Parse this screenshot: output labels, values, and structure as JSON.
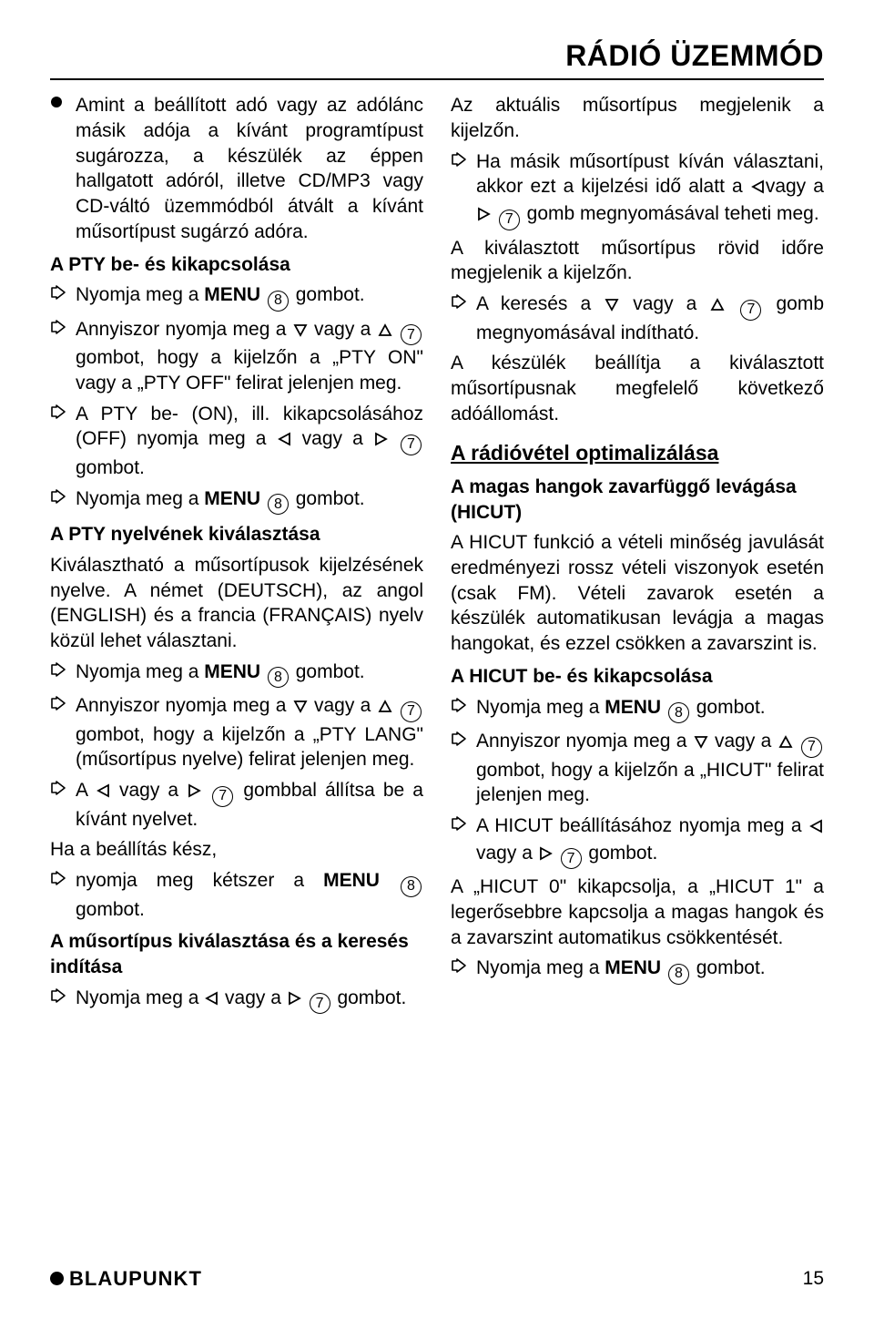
{
  "page_title": "RÁDIÓ ÜZEMMÓD",
  "left": {
    "bullet1": "Amint a beállított adó vagy az adólánc másik adója a kívánt programtípust sugározza, a készülék az éppen hallgatott adóról, illetve CD/MP3 vagy CD-váltó üzemmódból átvált a kívánt műsortípust sugárzó adóra.",
    "h_pty_onoff": "A PTY be- és kikapcsolása",
    "a1_pre": "Nyomja meg a ",
    "a1_menu": "MENU",
    "a1_num": "8",
    "a1_post": " gombot.",
    "a2_seg1": "Annyiszor nyomja meg a ",
    "a2_seg2": " vagy a ",
    "a2_num": "7",
    "a2_seg3": " gombot, hogy a kijelzőn a „PTY ON\" vagy a „PTY OFF\" felirat jelenjen meg.",
    "a3_seg1": "A PTY be- (ON), ill. kikapcsolásához (OFF) nyomja meg a ",
    "a3_seg2": " vagy a ",
    "a3_num": "7",
    "a3_seg3": " gombot.",
    "a4_pre": "Nyomja meg a ",
    "a4_menu": "MENU",
    "a4_num": "8",
    "a4_post": " gombot.",
    "h_pty_lang": "A PTY nyelvének kiválasztása",
    "p_lang": "Kiválasztható a műsortípusok kijelzésének nyelve. A német (DEUTSCH), az angol (ENGLISH) és a francia (FRANÇAIS) nyelv közül lehet választani.",
    "a5_pre": "Nyomja meg a ",
    "a5_menu": "MENU",
    "a5_num": "8",
    "a5_post": " gombot.",
    "a6_seg1": "Annyiszor nyomja meg a ",
    "a6_seg2": " vagy a ",
    "a6_num": "7",
    "a6_seg3": " gombot, hogy a kijelzőn a „PTY LANG\" (műsortípus nyelve) felirat jelenjen meg.",
    "a7_seg1": "A ",
    "a7_seg2": " vagy a ",
    "a7_num": "7",
    "a7_seg3": " gombbal állítsa be a kívánt nyelvet.",
    "p_ready": "Ha a beállítás kész,",
    "a8_pre": "nyomja meg kétszer a ",
    "a8_menu": "MENU",
    "a8_num": "8",
    "a8_post": " gombot.",
    "h_search": "A műsortípus kiválasztása és a keresés indítása",
    "a9_seg1": "Nyomja meg a ",
    "a9_seg2": " vagy a ",
    "a9_num": "7",
    "a9_seg3": " gombot."
  },
  "right": {
    "p_current": "Az aktuális műsortípus megjelenik a kijelzőn.",
    "a1_seg1": "Ha másik műsortípust kíván választani, akkor ezt a kijelzési idő alatt a ",
    "a1_seg2": "vagy a ",
    "a1_num": "7",
    "a1_seg3": " gomb megnyomásával teheti meg.",
    "p_selected": "A kiválasztott műsortípus rövid időre megjelenik a kijelzőn.",
    "a2_seg1": "A keresés a ",
    "a2_seg2": " vagy a ",
    "a2_num": "7",
    "a2_seg3": " gomb megnyomásával indítható.",
    "p_station": "A készülék beállítja a kiválasztott műsortípusnak megfelelő következő adóállomást.",
    "h_opt": "A rádióvétel optimalizálása",
    "h_hicut": "A magas hangok zavarfüggő levágása (HICUT)",
    "p_hicut": "A HICUT funkció a vételi minőség javulását eredményezi rossz vételi viszonyok esetén (csak FM). Vételi zavarok esetén a készülék automatikusan levágja a magas hangokat, és ezzel csökken a zavarszint is.",
    "h_hicut_onoff": "A HICUT be- és kikapcsolása",
    "a3_pre": "Nyomja meg a ",
    "a3_menu": "MENU",
    "a3_num": "8",
    "a3_post": " gombot.",
    "a4_seg1": "Annyiszor nyomja meg a ",
    "a4_seg2": " vagy a ",
    "a4_num": "7",
    "a4_seg3": " gombot, hogy a kijelzőn a „HICUT\" felirat jelenjen meg.",
    "a5_seg1": "A HICUT beállításához nyomja meg a ",
    "a5_seg2": " vagy a ",
    "a5_num": "7",
    "a5_seg3": " gombot.",
    "p_hicut01": "A „HICUT 0\" kikapcsolja, a „HICUT 1\" a legerősebbre kapcsolja a magas hangok és a zavarszint automatikus csökkentését.",
    "a6_pre": "Nyomja meg a ",
    "a6_menu": "MENU",
    "a6_num": "8",
    "a6_post": " gombot."
  },
  "footer": {
    "brand": "BLAUPUNKT",
    "page": "15"
  },
  "icons": {
    "bullet_svg": "<svg width='14' height='14'><circle cx='7' cy='7' r='6' fill='#000'/></svg>",
    "arrow_svg": "<svg width='18' height='16'><path d='M2 3 L2 13 L7 13 L7 15 L16 8 L7 1 L7 3 Z' fill='none' stroke='#000' stroke-width='1.6' stroke-linejoin='round'/></svg>",
    "tri_down": "<svg width='16' height='15'><path d='M2 2 L14 2 L8 13 Z' fill='none' stroke='#000' stroke-width='1.8'/></svg>",
    "tri_up": "<svg width='16' height='15'><path d='M8 2 L14 13 L2 13 Z' fill='none' stroke='#000' stroke-width='1.8'/></svg>",
    "tri_left": "<svg width='15' height='16'><path d='M13 2 L13 14 L2 8 Z' fill='none' stroke='#000' stroke-width='1.8'/></svg>",
    "tri_right": "<svg width='15' height='16'><path d='M2 2 L2 14 L13 8 Z' fill='none' stroke='#000' stroke-width='1.8'/></svg>"
  }
}
